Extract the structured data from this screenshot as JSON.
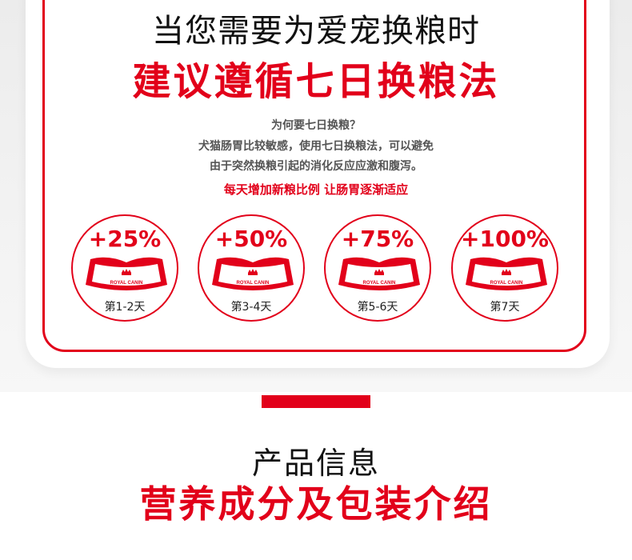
{
  "header": {
    "title": "当您需要为爱宠换粮时",
    "subtitle": "建议遵循七日换粮法"
  },
  "info": {
    "question": "为何要七日换粮？",
    "lines": [
      "犬猫肠胃比较敏感，使用七日换粮法，可以避免",
      "由于突然换粮引起的消化反应应激和腹泻。"
    ],
    "tip": "每天增加新粮比例 让肠胃逐渐适应"
  },
  "steps": [
    {
      "percent": "+25%",
      "days": "第1-2天"
    },
    {
      "percent": "+50%",
      "days": "第3-4天"
    },
    {
      "percent": "+75%",
      "days": "第5-6天"
    },
    {
      "percent": "+100%",
      "days": "第7天"
    }
  ],
  "brand": {
    "bowl_logo_text": "ROYAL CANIN"
  },
  "section": {
    "title": "产品信息",
    "subtitle": "营养成分及包装介绍"
  },
  "colors": {
    "accent": "#e2001a",
    "text": "#111111"
  },
  "icons": {
    "bowl": "pet-bowl-icon",
    "crown": "crown-icon"
  }
}
